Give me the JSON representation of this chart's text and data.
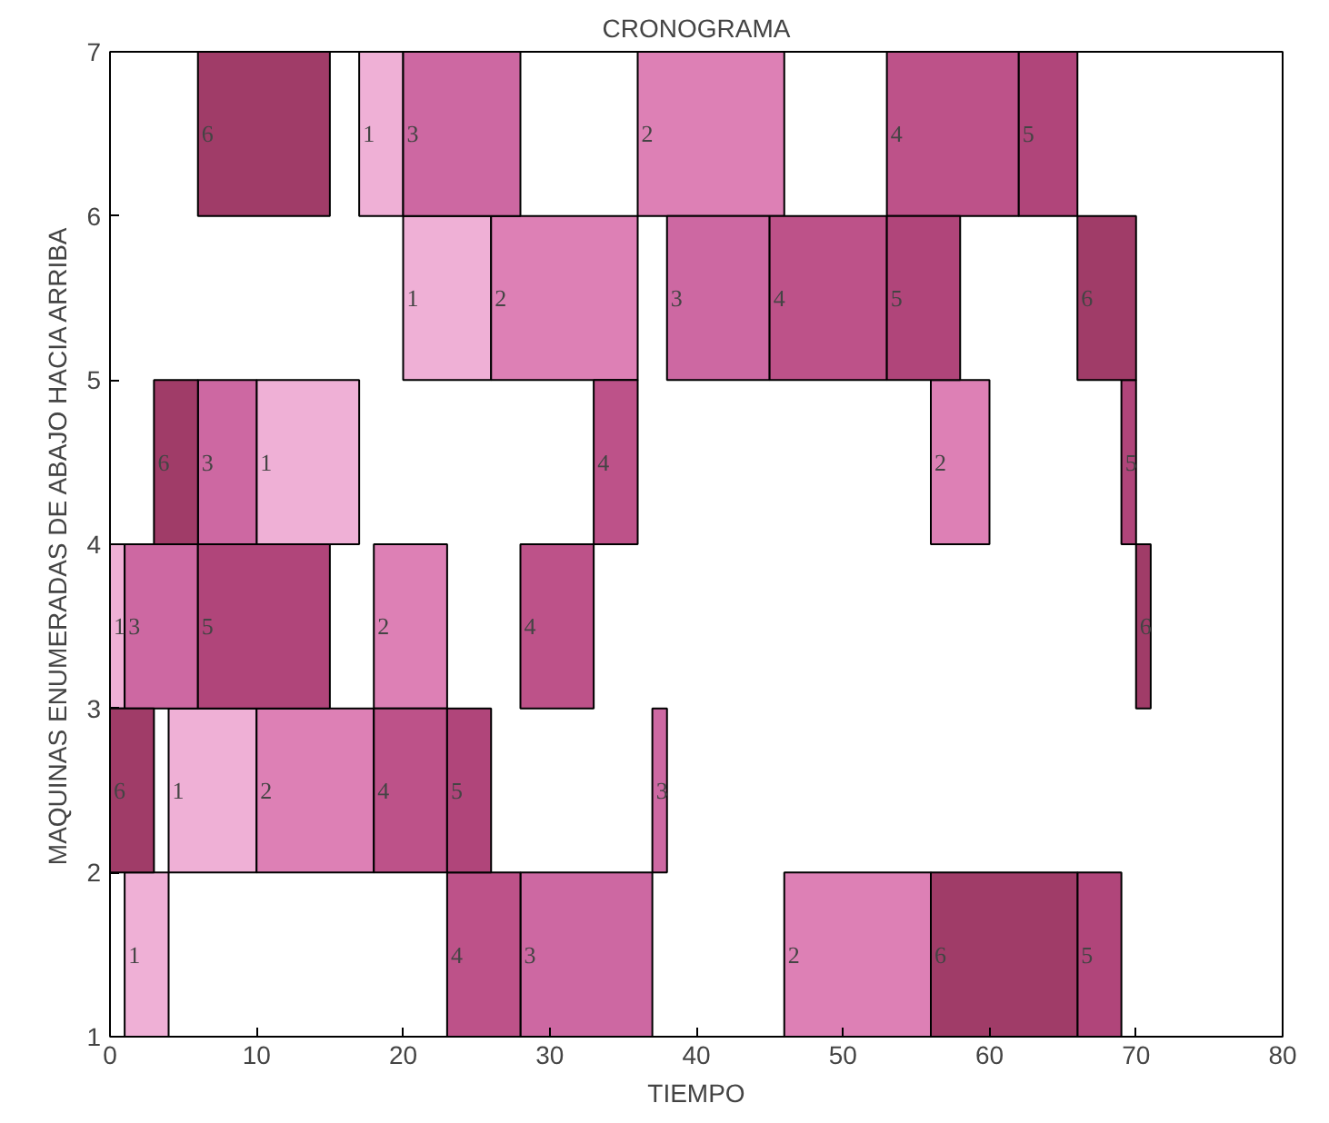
{
  "chart_data": {
    "type": "bar",
    "orientation": "horizontal",
    "title": "CRONOGRAMA",
    "xlabel": "TIEMPO",
    "ylabel": "MAQUINAS ENUMERADAS DE ABAJO HACIA ARRIBA",
    "xlim": [
      0,
      80
    ],
    "xticks": [
      0,
      10,
      20,
      30,
      40,
      50,
      60,
      70,
      80
    ],
    "ylim": [
      1,
      7
    ],
    "yticks": [
      1,
      2,
      3,
      4,
      5,
      6,
      7
    ],
    "grid": false,
    "series": [
      {
        "name": "1",
        "color": "#efb0d6",
        "x": [
          1.5,
          2.5,
          3.5,
          4.5,
          5.5,
          6.5
        ],
        "base": [
          1,
          4,
          0,
          10,
          20,
          17
        ],
        "values": [
          3,
          6,
          1,
          7,
          6,
          3
        ]
      },
      {
        "name": "2",
        "color": "#dd80b5",
        "x": [
          1.5,
          2.5,
          3.5,
          4.5,
          5.5,
          6.5
        ],
        "base": [
          46,
          10,
          18,
          56,
          26,
          36
        ],
        "values": [
          10,
          8,
          5,
          4,
          10,
          10
        ]
      },
      {
        "name": "3",
        "color": "#cd68a2",
        "x": [
          1.5,
          2.5,
          3.5,
          4.5,
          5.5,
          6.5
        ],
        "base": [
          28,
          37,
          1,
          6,
          38,
          20
        ],
        "values": [
          9,
          1,
          5,
          4,
          7,
          8
        ]
      },
      {
        "name": "4",
        "color": "#bd5289",
        "x": [
          1.5,
          2.5,
          3.5,
          4.5,
          5.5,
          6.5
        ],
        "base": [
          23,
          18,
          28,
          33,
          45,
          53
        ],
        "values": [
          5,
          5,
          5,
          3,
          8,
          9
        ]
      },
      {
        "name": "5",
        "color": "#b0457a",
        "x": [
          1.5,
          2.5,
          3.5,
          4.5,
          5.5,
          6.5
        ],
        "base": [
          66,
          23,
          6,
          69,
          53,
          62
        ],
        "values": [
          3,
          3,
          9,
          1,
          5,
          4
        ]
      },
      {
        "name": "6",
        "color": "#a03c68",
        "x": [
          1.5,
          2.5,
          3.5,
          4.5,
          5.5,
          6.5
        ],
        "base": [
          56,
          0,
          70,
          3,
          66,
          6
        ],
        "values": [
          10,
          3,
          1,
          3,
          4,
          9
        ]
      }
    ]
  }
}
